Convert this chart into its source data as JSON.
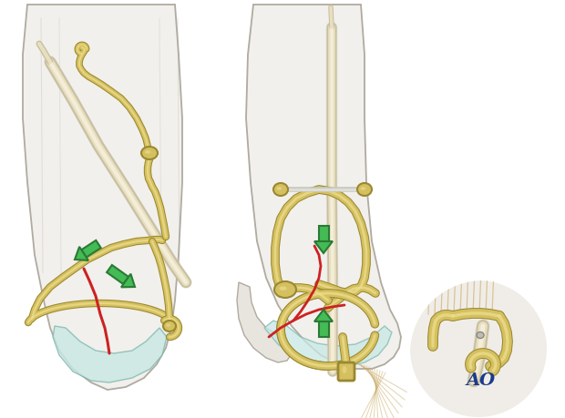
{
  "bg_color": "#ffffff",
  "bone_color": "#f2f0ec",
  "bone_outline": "#b0aaa0",
  "bone_inner": "#e8e4de",
  "wire_color": "#d4c060",
  "wire_dark": "#9a8830",
  "wire_light": "#f0e090",
  "cartilage_color": "#c8e8e4",
  "cartilage_outline": "#80b8b0",
  "fracture_color": "#cc2222",
  "arrow_fill": "#44bb55",
  "arrow_outline": "#2a7a35",
  "tendon_color": "#c8a860",
  "tendon_light": "#e0c880",
  "circle_color": "#22aa44",
  "ao_color": "#1a3a8c",
  "shadow_color": "#d8d4cc"
}
